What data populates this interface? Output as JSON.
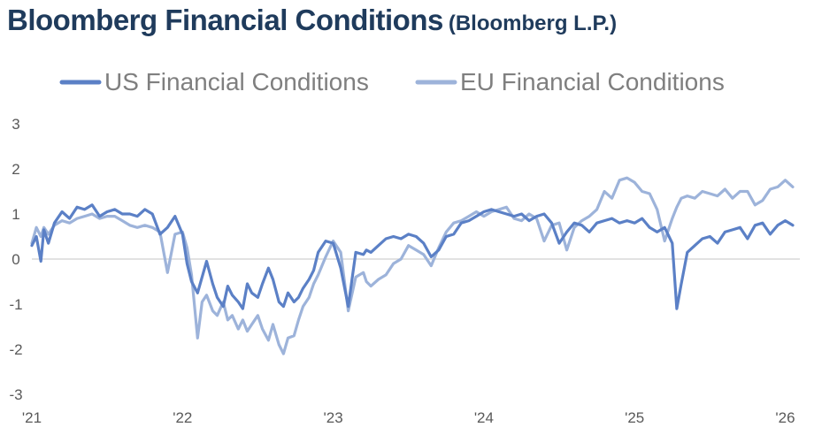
{
  "header": {
    "title": "Bloomberg Financial Conditions",
    "subtitle": "(Bloomberg L.P.)"
  },
  "colors": {
    "us": "#5b80c6",
    "eu": "#9db3da",
    "axis": "#d9d9d9",
    "title": "#1f3b5c"
  },
  "chart_data": {
    "type": "line",
    "title": "Bloomberg Financial Conditions",
    "subtitle": "(Bloomberg L.P.)",
    "xlabel": "",
    "ylabel": "",
    "xlim": [
      2021.0,
      2026.05
    ],
    "ylim": [
      -3,
      3
    ],
    "y_ticks": [
      3,
      2,
      1,
      0,
      -1,
      -2,
      -3
    ],
    "y_tick_labels": [
      "3",
      "2",
      "1",
      "0",
      "-1",
      "-2",
      "-3"
    ],
    "x_ticks": [
      2021,
      2022,
      2023,
      2024,
      2025,
      2026
    ],
    "x_tick_labels": [
      "'21",
      "'22",
      "'23",
      "'24",
      "'25",
      "'26"
    ],
    "legend_position": "top",
    "series": [
      {
        "name": "US Financial Conditions",
        "x": [
          2021.0,
          2021.03,
          2021.06,
          2021.08,
          2021.11,
          2021.15,
          2021.2,
          2021.25,
          2021.3,
          2021.35,
          2021.4,
          2021.45,
          2021.5,
          2021.55,
          2021.6,
          2021.65,
          2021.7,
          2021.75,
          2021.8,
          2021.85,
          2021.9,
          2021.95,
          2022.0,
          2022.03,
          2022.06,
          2022.1,
          2022.13,
          2022.16,
          2022.2,
          2022.23,
          2022.27,
          2022.3,
          2022.33,
          2022.37,
          2022.4,
          2022.43,
          2022.46,
          2022.5,
          2022.53,
          2022.57,
          2022.6,
          2022.64,
          2022.67,
          2022.7,
          2022.74,
          2022.77,
          2022.8,
          2022.84,
          2022.87,
          2022.9,
          2022.95,
          2023.0,
          2023.05,
          2023.1,
          2023.15,
          2023.2,
          2023.22,
          2023.25,
          2023.3,
          2023.35,
          2023.4,
          2023.45,
          2023.5,
          2023.55,
          2023.6,
          2023.65,
          2023.7,
          2023.75,
          2023.8,
          2023.85,
          2023.9,
          2023.95,
          2024.0,
          2024.05,
          2024.1,
          2024.15,
          2024.2,
          2024.25,
          2024.3,
          2024.35,
          2024.4,
          2024.45,
          2024.5,
          2024.55,
          2024.6,
          2024.65,
          2024.7,
          2024.75,
          2024.8,
          2024.85,
          2024.9,
          2024.95,
          2025.0,
          2025.05,
          2025.1,
          2025.15,
          2025.2,
          2025.25,
          2025.28,
          2025.31,
          2025.35,
          2025.4,
          2025.45,
          2025.5,
          2025.55,
          2025.6,
          2025.65,
          2025.7,
          2025.75,
          2025.8,
          2025.85,
          2025.9,
          2025.95,
          2026.0,
          2026.05
        ],
        "values": [
          0.3,
          0.5,
          -0.05,
          0.65,
          0.35,
          0.8,
          1.05,
          0.9,
          1.15,
          1.1,
          1.2,
          0.95,
          1.05,
          1.1,
          1.0,
          1.0,
          0.95,
          1.1,
          1.0,
          0.55,
          0.7,
          0.95,
          0.55,
          -0.1,
          -0.5,
          -0.75,
          -0.4,
          -0.05,
          -0.55,
          -0.85,
          -1.05,
          -0.6,
          -0.8,
          -0.95,
          -1.1,
          -0.55,
          -0.75,
          -0.85,
          -0.55,
          -0.2,
          -0.45,
          -0.95,
          -1.05,
          -0.75,
          -0.95,
          -0.85,
          -0.65,
          -0.45,
          -0.25,
          0.15,
          0.4,
          0.35,
          -0.2,
          -1.05,
          0.15,
          0.1,
          0.2,
          0.15,
          0.3,
          0.45,
          0.5,
          0.45,
          0.55,
          0.5,
          0.35,
          0.05,
          0.2,
          0.5,
          0.55,
          0.8,
          0.85,
          0.95,
          1.05,
          1.1,
          1.05,
          1.0,
          0.95,
          1.0,
          0.85,
          0.95,
          1.0,
          0.8,
          0.35,
          0.6,
          0.8,
          0.75,
          0.6,
          0.8,
          0.85,
          0.9,
          0.8,
          0.85,
          0.8,
          0.9,
          0.7,
          0.6,
          0.7,
          0.35,
          -1.1,
          -0.55,
          0.15,
          0.3,
          0.45,
          0.5,
          0.35,
          0.6,
          0.65,
          0.7,
          0.45,
          0.75,
          0.8,
          0.55,
          0.75,
          0.85,
          0.75
        ]
      },
      {
        "name": "EU Financial Conditions",
        "x": [
          2021.0,
          2021.03,
          2021.06,
          2021.08,
          2021.11,
          2021.15,
          2021.2,
          2021.25,
          2021.3,
          2021.35,
          2021.4,
          2021.45,
          2021.5,
          2021.55,
          2021.6,
          2021.65,
          2021.7,
          2021.75,
          2021.8,
          2021.85,
          2021.9,
          2021.95,
          2022.0,
          2022.03,
          2022.06,
          2022.1,
          2022.13,
          2022.16,
          2022.2,
          2022.23,
          2022.27,
          2022.3,
          2022.33,
          2022.37,
          2022.4,
          2022.43,
          2022.46,
          2022.5,
          2022.53,
          2022.57,
          2022.6,
          2022.64,
          2022.67,
          2022.7,
          2022.74,
          2022.77,
          2022.8,
          2022.84,
          2022.87,
          2022.9,
          2022.95,
          2023.0,
          2023.05,
          2023.1,
          2023.15,
          2023.2,
          2023.22,
          2023.25,
          2023.3,
          2023.35,
          2023.4,
          2023.45,
          2023.5,
          2023.55,
          2023.6,
          2023.65,
          2023.7,
          2023.75,
          2023.8,
          2023.85,
          2023.9,
          2023.95,
          2024.0,
          2024.05,
          2024.1,
          2024.15,
          2024.2,
          2024.25,
          2024.3,
          2024.35,
          2024.4,
          2024.45,
          2024.5,
          2024.55,
          2024.6,
          2024.65,
          2024.7,
          2024.75,
          2024.8,
          2024.85,
          2024.9,
          2024.95,
          2025.0,
          2025.05,
          2025.1,
          2025.15,
          2025.2,
          2025.25,
          2025.28,
          2025.31,
          2025.35,
          2025.4,
          2025.45,
          2025.5,
          2025.55,
          2025.6,
          2025.65,
          2025.7,
          2025.75,
          2025.8,
          2025.85,
          2025.9,
          2025.95,
          2026.0,
          2026.05
        ],
        "values": [
          0.35,
          0.7,
          0.5,
          0.7,
          0.55,
          0.75,
          0.85,
          0.8,
          0.9,
          0.95,
          1.0,
          0.9,
          0.95,
          0.95,
          0.85,
          0.75,
          0.7,
          0.75,
          0.7,
          0.6,
          -0.3,
          0.55,
          0.6,
          0.25,
          -0.35,
          -1.75,
          -0.95,
          -0.8,
          -1.15,
          -1.25,
          -0.95,
          -1.35,
          -1.25,
          -1.55,
          -1.35,
          -1.6,
          -1.45,
          -1.25,
          -1.55,
          -1.8,
          -1.45,
          -1.9,
          -2.1,
          -1.75,
          -1.7,
          -1.35,
          -1.05,
          -0.85,
          -0.55,
          -0.35,
          0.05,
          0.4,
          0.15,
          -1.15,
          -0.4,
          -0.3,
          -0.5,
          -0.6,
          -0.45,
          -0.35,
          -0.1,
          0.0,
          0.3,
          0.2,
          0.1,
          -0.15,
          0.25,
          0.6,
          0.8,
          0.85,
          0.95,
          1.05,
          0.95,
          1.05,
          1.1,
          1.15,
          0.9,
          0.85,
          1.0,
          0.9,
          0.4,
          0.75,
          0.8,
          0.2,
          0.7,
          0.85,
          0.95,
          1.1,
          1.5,
          1.35,
          1.75,
          1.8,
          1.7,
          1.5,
          1.45,
          1.1,
          0.4,
          0.9,
          1.15,
          1.35,
          1.4,
          1.35,
          1.5,
          1.45,
          1.4,
          1.55,
          1.35,
          1.5,
          1.5,
          1.2,
          1.3,
          1.55,
          1.6,
          1.75,
          1.6
        ]
      }
    ]
  }
}
